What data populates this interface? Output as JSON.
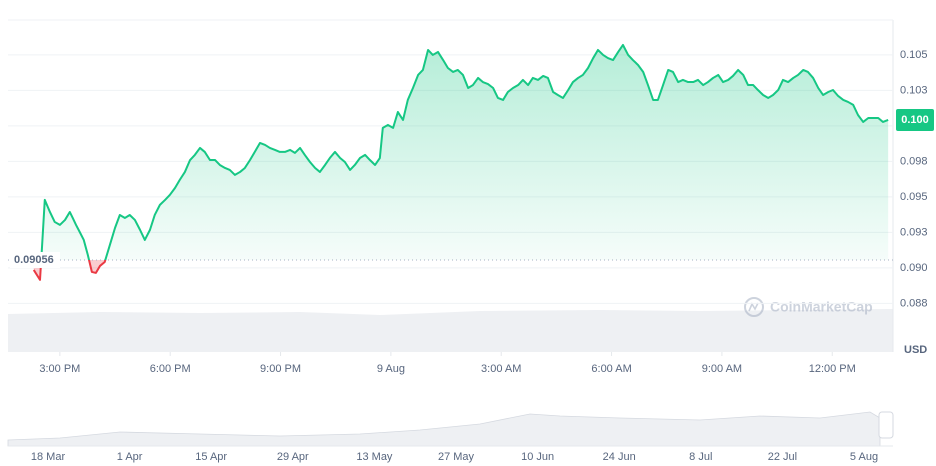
{
  "chart_data": {
    "type": "line",
    "series": [
      {
        "name": "Price",
        "color": "#16c784",
        "down_color": "#ea3943",
        "x": [
          14.29,
          14.46,
          14.51,
          14.59,
          14.73,
          14.86,
          15.0,
          15.14,
          15.27,
          15.35,
          15.44,
          15.54,
          15.65,
          15.76,
          15.87,
          15.98,
          16.09,
          16.22,
          16.36,
          16.5,
          16.63,
          16.77,
          16.9,
          17.04,
          17.18,
          17.31,
          17.45,
          17.58,
          17.72,
          17.86,
          17.99,
          18.13,
          18.26,
          18.4,
          18.54,
          18.67,
          18.81,
          18.94,
          19.08,
          19.22,
          19.35,
          19.49,
          19.62,
          19.76,
          19.9,
          20.03,
          20.17,
          20.3,
          20.44,
          20.58,
          20.71,
          20.85,
          20.98,
          21.12,
          21.26,
          21.39,
          21.53,
          21.66,
          21.8,
          21.94,
          22.07,
          22.21,
          22.34,
          22.48,
          22.62,
          22.75,
          22.89,
          23.02,
          23.16,
          23.3,
          23.43,
          23.57,
          23.7,
          23.78,
          23.92,
          24.06,
          24.19,
          24.33,
          24.46,
          24.6,
          24.74,
          24.87,
          25.01,
          25.14,
          25.28,
          25.42,
          25.55,
          25.69,
          25.82,
          25.96,
          26.1,
          26.23,
          26.37,
          26.5,
          26.64,
          26.78,
          26.91,
          27.05,
          27.18,
          27.32,
          27.46,
          27.59,
          27.73,
          27.86,
          28.0,
          28.14,
          28.27,
          28.41,
          28.54,
          28.68,
          28.82,
          28.95,
          29.09,
          29.22,
          29.36,
          29.5,
          29.63,
          29.77,
          29.9,
          30.04,
          30.18,
          30.31,
          30.45,
          30.58,
          30.72,
          30.86,
          30.99,
          31.13,
          31.26,
          31.4,
          31.54,
          31.67,
          31.81,
          31.94,
          32.08,
          32.22,
          32.35,
          32.49,
          32.62,
          32.76,
          32.9,
          33.03,
          33.17,
          33.3,
          33.44,
          33.58,
          33.71,
          33.85,
          33.98,
          34.12,
          34.26,
          34.39,
          34.53,
          34.66,
          34.8,
          34.94,
          35.07,
          35.21,
          35.34,
          35.48,
          35.62,
          35.75,
          35.89,
          36.02,
          36.16,
          36.3,
          36.43,
          36.57,
          36.7,
          36.84,
          36.98,
          37.11,
          37.25,
          37.38,
          37.52
        ],
        "values": [
          0.08986,
          0.08916,
          0.09127,
          0.09479,
          0.09394,
          0.09324,
          0.09303,
          0.09338,
          0.09394,
          0.09352,
          0.09303,
          0.09253,
          0.09197,
          0.09092,
          0.08972,
          0.08965,
          0.09014,
          0.09042,
          0.09162,
          0.09282,
          0.09373,
          0.09352,
          0.09373,
          0.09338,
          0.09268,
          0.09197,
          0.09268,
          0.09373,
          0.09444,
          0.09479,
          0.09514,
          0.09563,
          0.0962,
          0.09676,
          0.0976,
          0.09796,
          0.09845,
          0.09817,
          0.0976,
          0.0976,
          0.09725,
          0.09704,
          0.0969,
          0.09655,
          0.09676,
          0.09704,
          0.0976,
          0.09817,
          0.0988,
          0.09866,
          0.09845,
          0.09831,
          0.09817,
          0.09817,
          0.09831,
          0.0981,
          0.09845,
          0.09796,
          0.09746,
          0.09704,
          0.09676,
          0.09725,
          0.09774,
          0.09817,
          0.09774,
          0.09746,
          0.0969,
          0.09725,
          0.09774,
          0.09796,
          0.0976,
          0.09725,
          0.09774,
          0.09986,
          0.10007,
          0.09986,
          0.10098,
          0.10042,
          0.10183,
          0.10267,
          0.10359,
          0.10394,
          0.10535,
          0.105,
          0.10521,
          0.10464,
          0.10408,
          0.1038,
          0.10394,
          0.10359,
          0.10267,
          0.10288,
          0.10338,
          0.10309,
          0.10295,
          0.10267,
          0.10197,
          0.10183,
          0.10239,
          0.10267,
          0.10288,
          0.10324,
          0.10288,
          0.10338,
          0.10324,
          0.10352,
          0.10338,
          0.10239,
          0.10218,
          0.10197,
          0.10253,
          0.10309,
          0.10338,
          0.10359,
          0.10408,
          0.10478,
          0.10535,
          0.105,
          0.10478,
          0.10464,
          0.10521,
          0.1057,
          0.105,
          0.10464,
          0.10429,
          0.1038,
          0.10288,
          0.10183,
          0.10183,
          0.10288,
          0.10394,
          0.1038,
          0.10309,
          0.10324,
          0.10309,
          0.10309,
          0.10324,
          0.10288,
          0.10309,
          0.10338,
          0.10359,
          0.10309,
          0.10324,
          0.10352,
          0.10394,
          0.10359,
          0.10288,
          0.10288,
          0.10253,
          0.10218,
          0.10197,
          0.10218,
          0.10253,
          0.10324,
          0.10309,
          0.10338,
          0.10359,
          0.10394,
          0.1038,
          0.10338,
          0.10267,
          0.10218,
          0.10239,
          0.10253,
          0.10211,
          0.10183,
          0.10169,
          0.10148,
          0.10077,
          0.10028,
          0.10056,
          0.10056,
          0.10056,
          0.10028,
          0.10042
        ]
      }
    ],
    "reference_price": 0.09056,
    "last_price_label": "0.100",
    "xlim": [
      13.59,
      37.57
    ],
    "xticks": [
      {
        "value": 15,
        "label": "3:00 PM"
      },
      {
        "value": 18,
        "label": "6:00 PM"
      },
      {
        "value": 21,
        "label": "9:00 PM"
      },
      {
        "value": 24,
        "label": "9 Aug"
      },
      {
        "value": 27,
        "label": "3:00 AM"
      },
      {
        "value": 30,
        "label": "6:00 AM"
      },
      {
        "value": 33,
        "label": "9:00 AM"
      },
      {
        "value": 36,
        "label": "12:00 PM"
      }
    ],
    "ylim": [
      0.08408,
      0.10746
    ],
    "yticks": [
      {
        "value": 0.0875,
        "label": "0.088"
      },
      {
        "value": 0.09,
        "label": "0.090"
      },
      {
        "value": 0.0925,
        "label": "0.093"
      },
      {
        "value": 0.095,
        "label": "0.095"
      },
      {
        "value": 0.0975,
        "label": "0.098"
      },
      {
        "value": 0.1,
        "label": "0.100"
      },
      {
        "value": 0.1025,
        "label": "0.103"
      },
      {
        "value": 0.105,
        "label": "0.105"
      }
    ],
    "grid": true,
    "currency": "USD",
    "watermark": "CoinMarketCap",
    "navigator": {
      "labels": [
        "18 Mar",
        "1 Apr",
        "15 Apr",
        "29 Apr",
        "13 May",
        "27 May",
        "10 Jun",
        "24 Jun",
        "8 Jul",
        "22 Jul",
        "5 Aug"
      ]
    }
  }
}
